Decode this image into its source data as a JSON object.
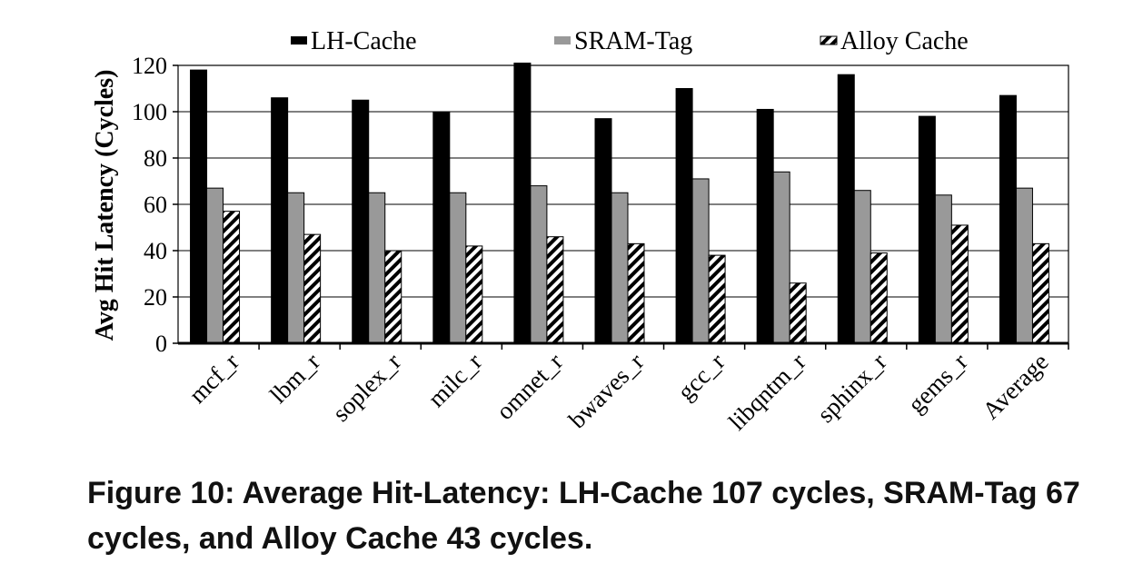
{
  "chart_data": {
    "type": "bar",
    "ylabel": "Avg Hit Latency (Cycles)",
    "xlabel": "",
    "ylim": [
      0,
      120
    ],
    "yticks": [
      0,
      20,
      40,
      60,
      80,
      100,
      120
    ],
    "grid": true,
    "legend_position": "top",
    "categories": [
      "mcf_r",
      "lbm_r",
      "soplex_r",
      "milc_r",
      "omnet_r",
      "bwaves_r",
      "gcc_r",
      "libqntm_r",
      "sphinx_r",
      "gems_r",
      "Average"
    ],
    "series": [
      {
        "name": "LH-Cache",
        "color": "#000000",
        "pattern": "solid",
        "values": [
          118,
          106,
          105,
          100,
          121,
          97,
          110,
          101,
          116,
          98,
          107
        ]
      },
      {
        "name": "SRAM-Tag",
        "color": "#999999",
        "pattern": "solid",
        "values": [
          67,
          65,
          65,
          65,
          68,
          65,
          71,
          74,
          66,
          64,
          67
        ]
      },
      {
        "name": "Alloy Cache",
        "color": "#000000",
        "pattern": "diagonal-hatch",
        "values": [
          57,
          47,
          40,
          42,
          46,
          43,
          38,
          26,
          39,
          51,
          43
        ]
      }
    ]
  },
  "caption": "Figure 10: Average Hit-Latency: LH-Cache 107 cycles, SRAM-Tag 67 cycles, and Alloy Cache 43 cycles."
}
